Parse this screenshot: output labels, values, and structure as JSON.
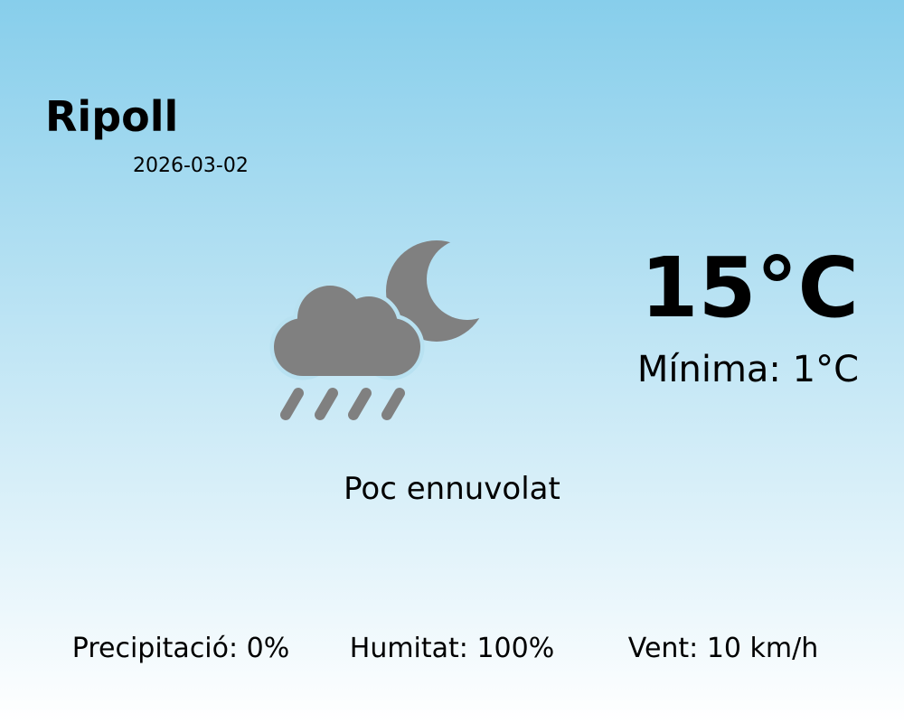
{
  "location": {
    "city": "Ripoll",
    "date": "2026-03-02"
  },
  "current": {
    "temperature": "15°C",
    "minimum": "Mínima: 1°C",
    "description": "Poc ennuvolat",
    "icon": "cloud-rain-moon-icon",
    "icon_color": "#808080"
  },
  "stats": {
    "precipitation": "Precipitació: 0%",
    "humidity": "Humitat: 100%",
    "wind": "Vent: 10 km/h"
  },
  "colors": {
    "background_top": "#87ceeb",
    "background_bottom": "#ffffff"
  }
}
